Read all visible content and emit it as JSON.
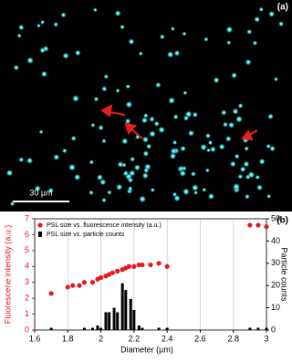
{
  "image": {
    "label": "(a)",
    "scale_bar": "30 µm"
  },
  "chart_data": {
    "type": "combo",
    "panel_label": "(b)",
    "xlabel": "Diameter (µm)",
    "ylabel": "Fluorescene intensity (a.u.)",
    "y2label": "Particle counts",
    "xlim": [
      1.6,
      3.0
    ],
    "xticks": [
      1.6,
      1.8,
      2.0,
      2.2,
      2.4,
      2.6,
      2.8,
      3.0
    ],
    "ylim": [
      0,
      7
    ],
    "yticks": [
      0,
      1,
      2,
      3,
      4,
      5,
      6,
      7
    ],
    "y2lim": [
      0,
      50
    ],
    "y2ticks": [
      0,
      10,
      20,
      30,
      40,
      50
    ],
    "grid": true,
    "legend": "upper left",
    "series": [
      {
        "name": "PSL size vs. fluorescence intensity (a.u.)",
        "type": "scatter",
        "color": "#e41a1c",
        "x": [
          1.7,
          1.8,
          1.83,
          1.87,
          1.9,
          1.95,
          1.98,
          2.0,
          2.03,
          2.05,
          2.07,
          2.1,
          2.13,
          2.15,
          2.17,
          2.2,
          2.23,
          2.25,
          2.3,
          2.35,
          2.4,
          2.9,
          2.95,
          3.0
        ],
        "values": [
          2.3,
          2.7,
          2.8,
          2.8,
          3.0,
          3.0,
          3.2,
          3.3,
          3.4,
          3.5,
          3.6,
          3.7,
          3.8,
          3.9,
          4.0,
          4.0,
          4.1,
          4.1,
          4.1,
          4.2,
          4.0,
          6.6,
          6.6,
          6.5
        ]
      },
      {
        "name": "PSL size vs. particle counts",
        "type": "bar",
        "color": "#000000",
        "axis": "y2",
        "x": [
          1.7,
          1.9,
          1.95,
          1.98,
          2.0,
          2.03,
          2.05,
          2.08,
          2.1,
          2.13,
          2.15,
          2.18,
          2.2,
          2.23,
          2.25,
          2.35,
          2.4,
          2.9,
          2.95,
          3.0
        ],
        "values": [
          1,
          1,
          1,
          2,
          1,
          8,
          8,
          10,
          8,
          21,
          18,
          14,
          9,
          2,
          1,
          1,
          1,
          1,
          1,
          1
        ]
      }
    ]
  }
}
